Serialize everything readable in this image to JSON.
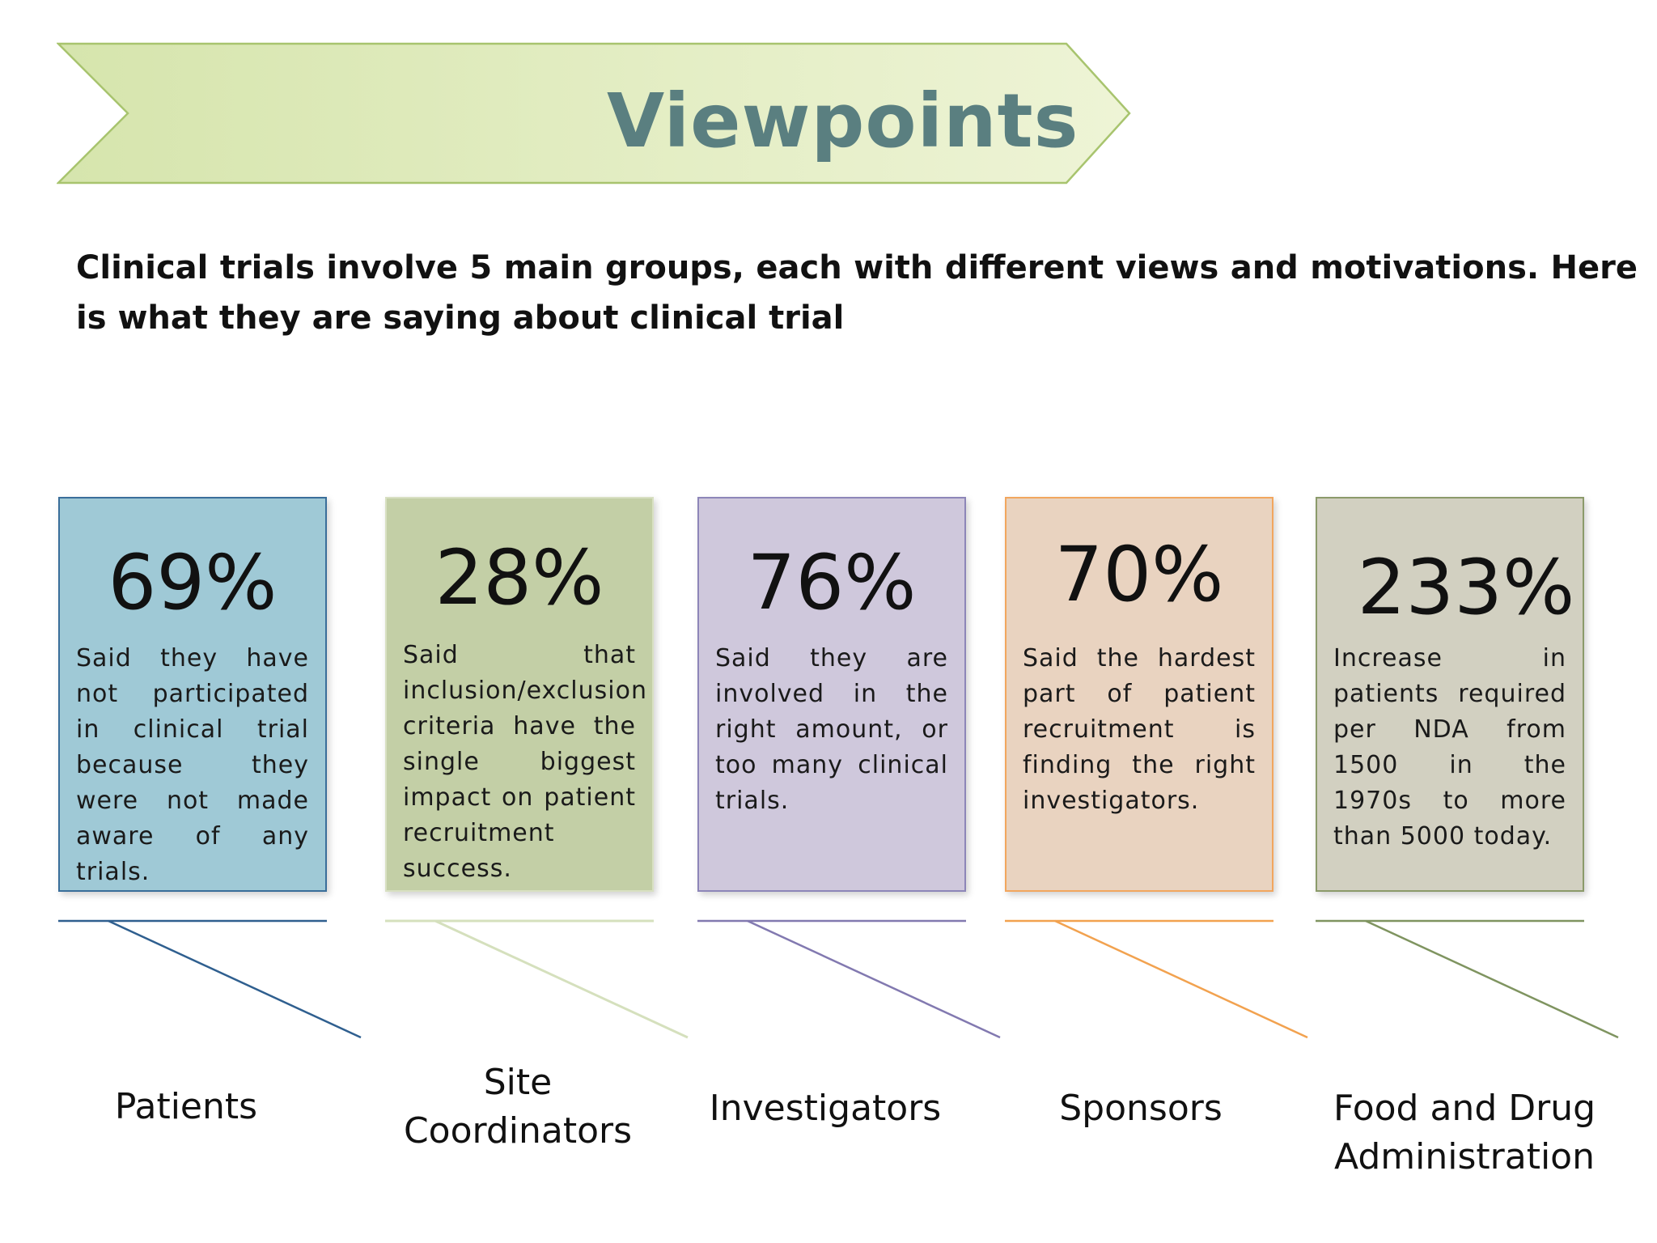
{
  "title": "Viewpoints",
  "intro": "Clinical trials involve 5 main groups, each with different views and motivations. Here is what they are saying about clinical trial",
  "colors": {
    "banner_fill": "#dbe8b4",
    "banner_stroke": "#9bbf5e",
    "title_text": "#5a7f80"
  },
  "groups": [
    {
      "value": "69%",
      "description": "Said they have not participated in clinical trial because they were not made aware of any trials.",
      "label": "Patients",
      "color": "#9fc9d6",
      "line_color": "#2f5f8f"
    },
    {
      "value": "28%",
      "description": "Said that inclusion/exclusion criteria have the single biggest impact on patient recruitment success.",
      "label": "Site Coordinators",
      "color": "#c3cfa6",
      "line_color": "#d5e0bd"
    },
    {
      "value": "76%",
      "description": "Said they are involved in the right amount, or too many clinical trials.",
      "label": "Investigators",
      "color": "#cfc8dc",
      "line_color": "#8279b0"
    },
    {
      "value": "70%",
      "description": "Said the hardest part of patient recruitment is finding the right investigators.",
      "label": "Sponsors",
      "color": "#e9d3c0",
      "line_color": "#f2a24f"
    },
    {
      "value": "233%",
      "description": "Increase in patients required per NDA from 1500 in the 1970s to more than 5000 today.",
      "label": "Food and Drug Administration",
      "color": "#d2d0c1",
      "line_color": "#7f9460"
    }
  ]
}
